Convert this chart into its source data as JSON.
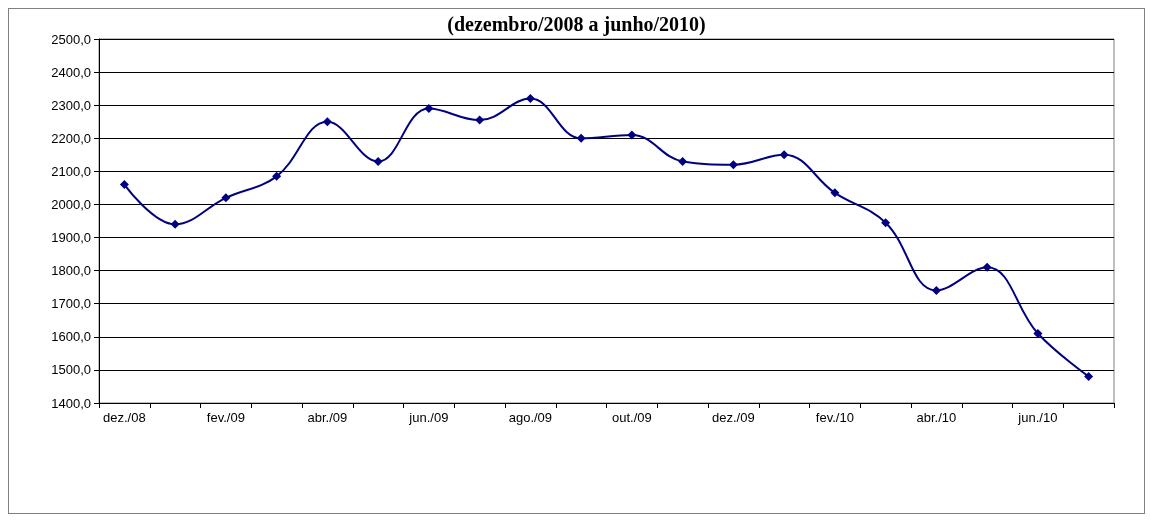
{
  "chart_data": {
    "type": "line",
    "title": "(dezembro/2008 a junho/2010)",
    "categories": [
      "dez./08",
      null,
      "fev./09",
      null,
      "abr./09",
      null,
      "jun./09",
      null,
      "ago./09",
      null,
      "out./09",
      null,
      "dez./09",
      null,
      "fev./10",
      null,
      "abr./10",
      null,
      "jun./10",
      null
    ],
    "series": [
      {
        "color": "#000080",
        "values": [
          2060,
          1940,
          2020,
          2085,
          2250,
          2130,
          2290,
          2255,
          2320,
          2200,
          2210,
          2130,
          2120,
          2150,
          2035,
          1945,
          1740,
          1810,
          1610,
          1480
        ]
      }
    ],
    "ylim": [
      1400,
      2500
    ],
    "yticks": [
      {
        "value": 1400,
        "label": "1400,0"
      },
      {
        "value": 1500,
        "label": "1500,0"
      },
      {
        "value": 1600,
        "label": "1600,0"
      },
      {
        "value": 1700,
        "label": "1700,0"
      },
      {
        "value": 1800,
        "label": "1800,0"
      },
      {
        "value": 1900,
        "label": "1900,0"
      },
      {
        "value": 2000,
        "label": "2000,0"
      },
      {
        "value": 2100,
        "label": "2100,0"
      },
      {
        "value": 2200,
        "label": "2200,0"
      },
      {
        "value": 2300,
        "label": "2300,0"
      },
      {
        "value": 2400,
        "label": "2400,0"
      },
      {
        "value": 2500,
        "label": "2500,0"
      }
    ],
    "grid": "y",
    "marker": "diamond"
  }
}
